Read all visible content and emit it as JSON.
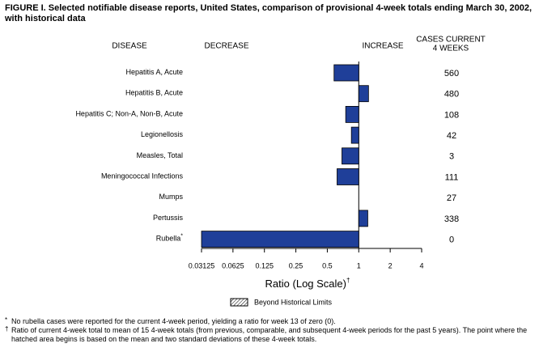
{
  "chart_data": {
    "type": "hbar",
    "title": "FIGURE I. Selected notifiable disease reports, United States, comparison of provisional 4-week totals ending March 30, 2002, with historical data",
    "category_header": "DISEASE",
    "decrease_label": "DECREASE",
    "increase_label": "INCREASE",
    "cases_header": [
      "CASES CURRENT",
      "4 WEEKS"
    ],
    "categories": [
      "Hepatitis A, Acute",
      "Hepatitis B, Acute",
      "Hepatitis C; Non-A, Non-B, Acute",
      "Legionellosis",
      "Measles, Total",
      "Meningococcal Infections",
      "Mumps",
      "Pertussis",
      "Rubella"
    ],
    "category_notes": [
      null,
      null,
      null,
      null,
      null,
      null,
      null,
      null,
      "*"
    ],
    "values": [
      0.58,
      1.24,
      0.75,
      0.85,
      0.69,
      0.62,
      1,
      1.22,
      0.03125
    ],
    "cases": [
      560,
      480,
      108,
      42,
      3,
      111,
      27,
      338,
      0
    ],
    "color": "#1f3f99",
    "x_label": "Ratio (Log Scale)",
    "x_label_note": "†",
    "xscale": "log",
    "log_base": 2,
    "baseline": 1,
    "xlim": [
      0.03125,
      4
    ],
    "xticks": [
      0.03125,
      0.0625,
      0.125,
      0.25,
      0.5,
      1,
      2,
      4
    ],
    "legend": "Beyond Historical Limits",
    "footnotes": [
      {
        "marker": "*",
        "text": "No rubella cases were reported for the current 4-week period, yielding a ratio for week 13 of zero (0)."
      },
      {
        "marker": "†",
        "text": "Ratio of current 4-week total to mean of 15 4-week totals (from previous, comparable, and subsequent 4-week periods for the past 5 years). The point where the hatched area begins is based on the mean and two standard deviations of these 4-week totals."
      }
    ]
  }
}
